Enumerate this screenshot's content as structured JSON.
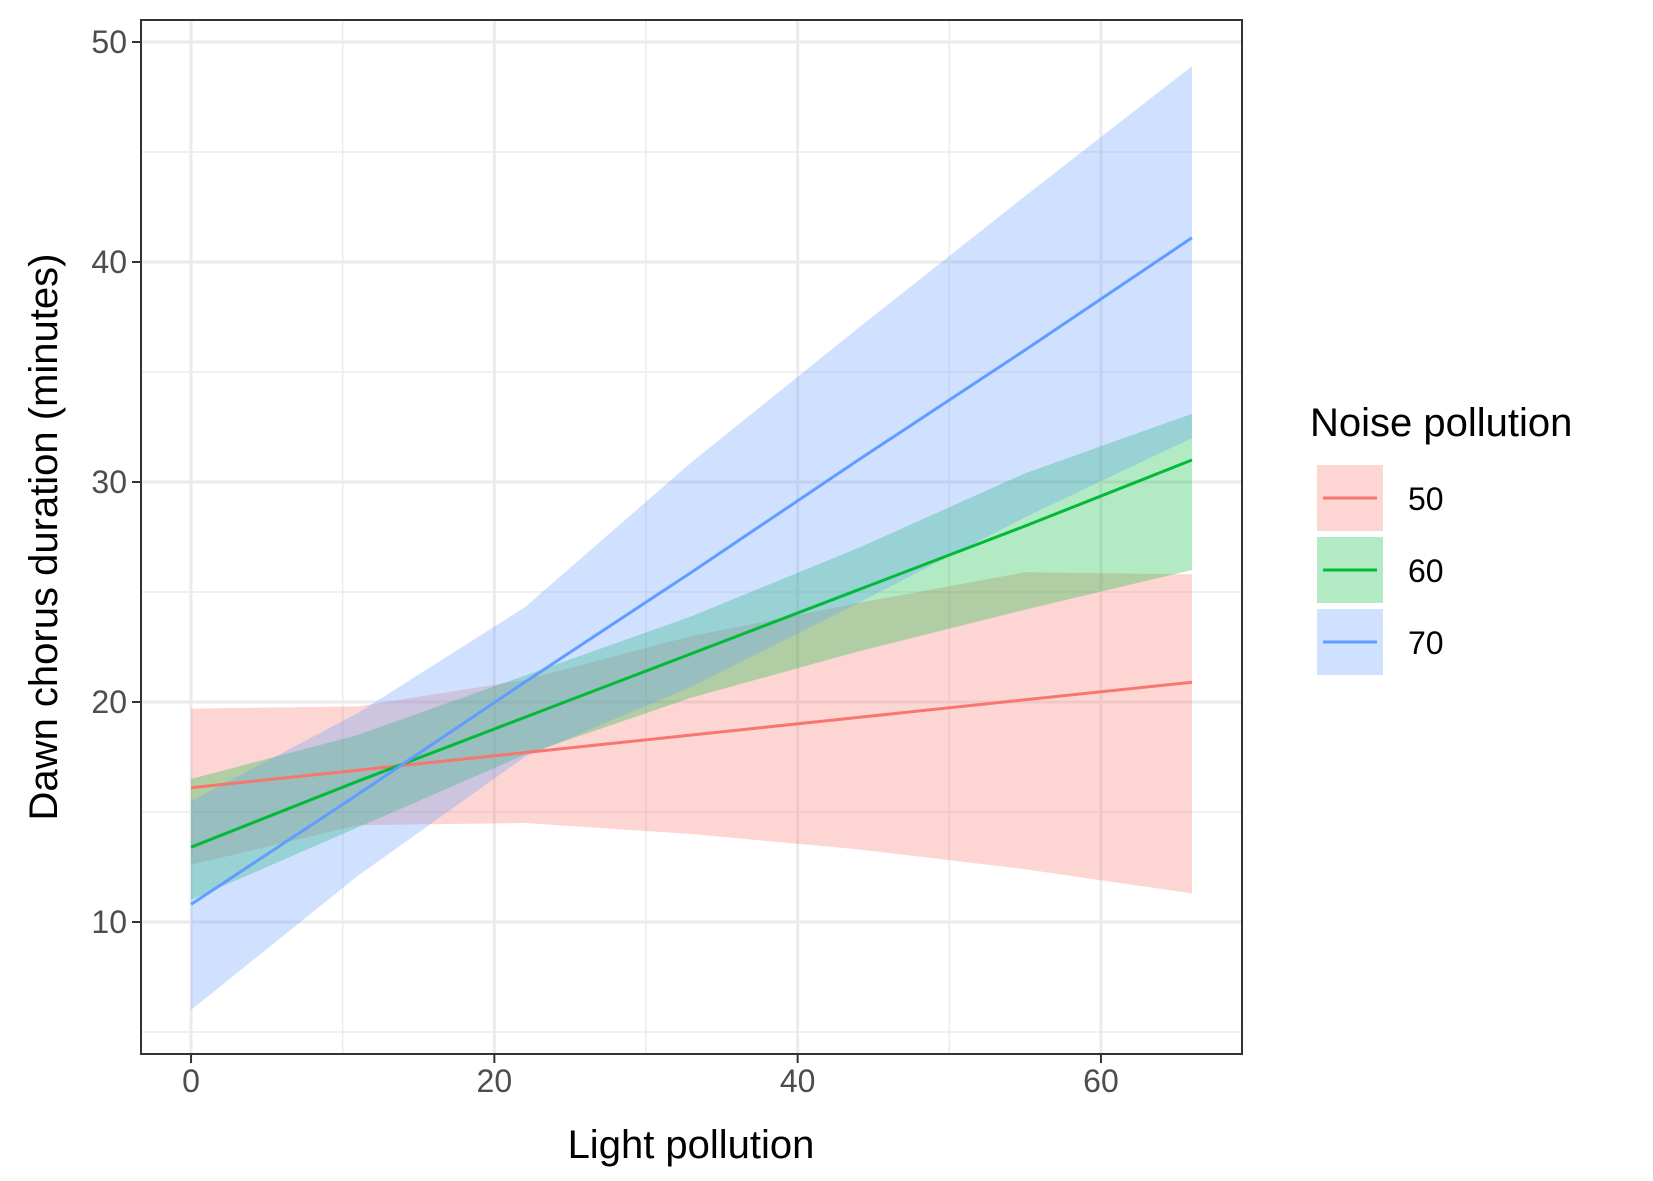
{
  "chart_data": {
    "type": "line",
    "xlabel": "Light pollution",
    "ylabel": "Dawn chorus duration (minutes)",
    "xlim": [
      -3.3,
      69.3
    ],
    "ylim": [
      4.0,
      51.0
    ],
    "xticks": [
      0,
      20,
      40,
      60
    ],
    "xtick_labels": [
      "0",
      "20",
      "40",
      "60"
    ],
    "xminor": [
      10,
      30,
      50
    ],
    "yticks": [
      10,
      20,
      30,
      40,
      50
    ],
    "ytick_labels": [
      "10",
      "20",
      "30",
      "40",
      "50"
    ],
    "yminor": [
      5,
      15,
      25,
      35,
      45
    ],
    "grid": true,
    "legend": {
      "title": "Noise pollution",
      "position": "right"
    },
    "series": [
      {
        "name": "50",
        "color": "#F8766D",
        "fill": "#F8766D",
        "x": [
          0,
          11,
          22,
          33,
          44,
          55,
          66
        ],
        "y": [
          16.1,
          16.9,
          17.7,
          18.5,
          19.3,
          20.1,
          20.9
        ],
        "lower": [
          12.6,
          14.4,
          14.5,
          14.0,
          13.3,
          12.4,
          11.3
        ],
        "upper": [
          19.7,
          19.8,
          21.0,
          23.0,
          24.5,
          25.9,
          25.8
        ]
      },
      {
        "name": "60",
        "color": "#00BA38",
        "fill": "#00BA38",
        "x": [
          0,
          11,
          22,
          33,
          44,
          55,
          66
        ],
        "y": [
          13.4,
          16.4,
          19.3,
          22.2,
          25.1,
          28.0,
          31.0
        ],
        "lower": [
          11.0,
          14.3,
          17.6,
          20.2,
          22.3,
          24.2,
          26.0
        ],
        "upper": [
          16.5,
          18.5,
          21.2,
          23.9,
          27.0,
          30.4,
          33.1
        ]
      },
      {
        "name": "70",
        "color": "#619CFF",
        "fill": "#619CFF",
        "x": [
          0,
          11,
          22,
          33,
          44,
          55,
          66
        ],
        "y": [
          10.8,
          15.8,
          20.9,
          25.9,
          31.0,
          36.0,
          41.1
        ],
        "lower": [
          6.0,
          12.1,
          17.5,
          20.7,
          24.5,
          28.4,
          32.0
        ],
        "upper": [
          15.5,
          19.5,
          24.3,
          30.9,
          37.0,
          43.0,
          48.9
        ]
      }
    ]
  }
}
